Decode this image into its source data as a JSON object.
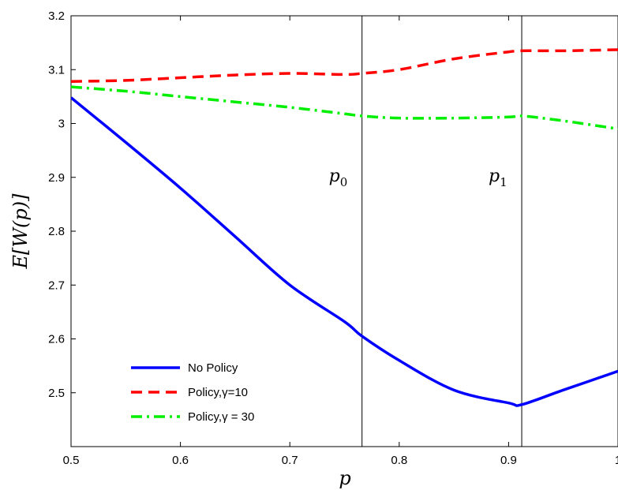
{
  "chart_data": {
    "type": "line",
    "title": "",
    "xlabel": "p",
    "ylabel": "E[W(p)]",
    "xlim": [
      0.5,
      1.0
    ],
    "ylim": [
      2.4,
      3.2
    ],
    "x_ticks": [
      0.5,
      0.6,
      0.7,
      0.8,
      0.9,
      1.0
    ],
    "x_tick_labels": [
      "0.5",
      "0.6",
      "0.7",
      "0.8",
      "0.9",
      "1"
    ],
    "y_ticks": [
      2.5,
      2.6,
      2.7,
      2.8,
      2.9,
      3.0,
      3.1,
      3.2
    ],
    "y_tick_labels": [
      "2.5",
      "2.6",
      "2.7",
      "2.8",
      "2.9",
      "3",
      "3.1",
      "3.2"
    ],
    "grid": false,
    "legend_position": "bottom-left",
    "series": [
      {
        "name": "No Policy",
        "color": "#0000ff",
        "style": "solid",
        "x": [
          0.5,
          0.55,
          0.6,
          0.65,
          0.7,
          0.75,
          0.766,
          0.8,
          0.85,
          0.9,
          0.912,
          0.95,
          1.0
        ],
        "y": [
          3.048,
          2.965,
          2.88,
          2.79,
          2.7,
          2.632,
          2.605,
          2.56,
          2.505,
          2.481,
          2.478,
          2.505,
          2.54
        ]
      },
      {
        "name": "Policy,γ=10",
        "color": "#ff0000",
        "style": "dashed",
        "x": [
          0.5,
          0.55,
          0.6,
          0.65,
          0.7,
          0.75,
          0.766,
          0.8,
          0.85,
          0.9,
          0.912,
          0.95,
          1.0
        ],
        "y": [
          3.078,
          3.08,
          3.085,
          3.09,
          3.093,
          3.091,
          3.093,
          3.1,
          3.12,
          3.133,
          3.135,
          3.135,
          3.137
        ]
      },
      {
        "name": "Policy,γ = 30",
        "color": "#00ee00",
        "style": "dashdot",
        "x": [
          0.5,
          0.55,
          0.6,
          0.65,
          0.7,
          0.75,
          0.766,
          0.8,
          0.85,
          0.9,
          0.912,
          0.95,
          1.0
        ],
        "y": [
          3.068,
          3.06,
          3.05,
          3.04,
          3.03,
          3.018,
          3.014,
          3.01,
          3.01,
          3.012,
          3.014,
          3.005,
          2.99
        ]
      }
    ],
    "vertical_lines": [
      {
        "x": 0.766,
        "label": "p0",
        "label_base": "p",
        "label_sub": "0"
      },
      {
        "x": 0.912,
        "label": "p1",
        "label_base": "p",
        "label_sub": "1"
      }
    ]
  }
}
